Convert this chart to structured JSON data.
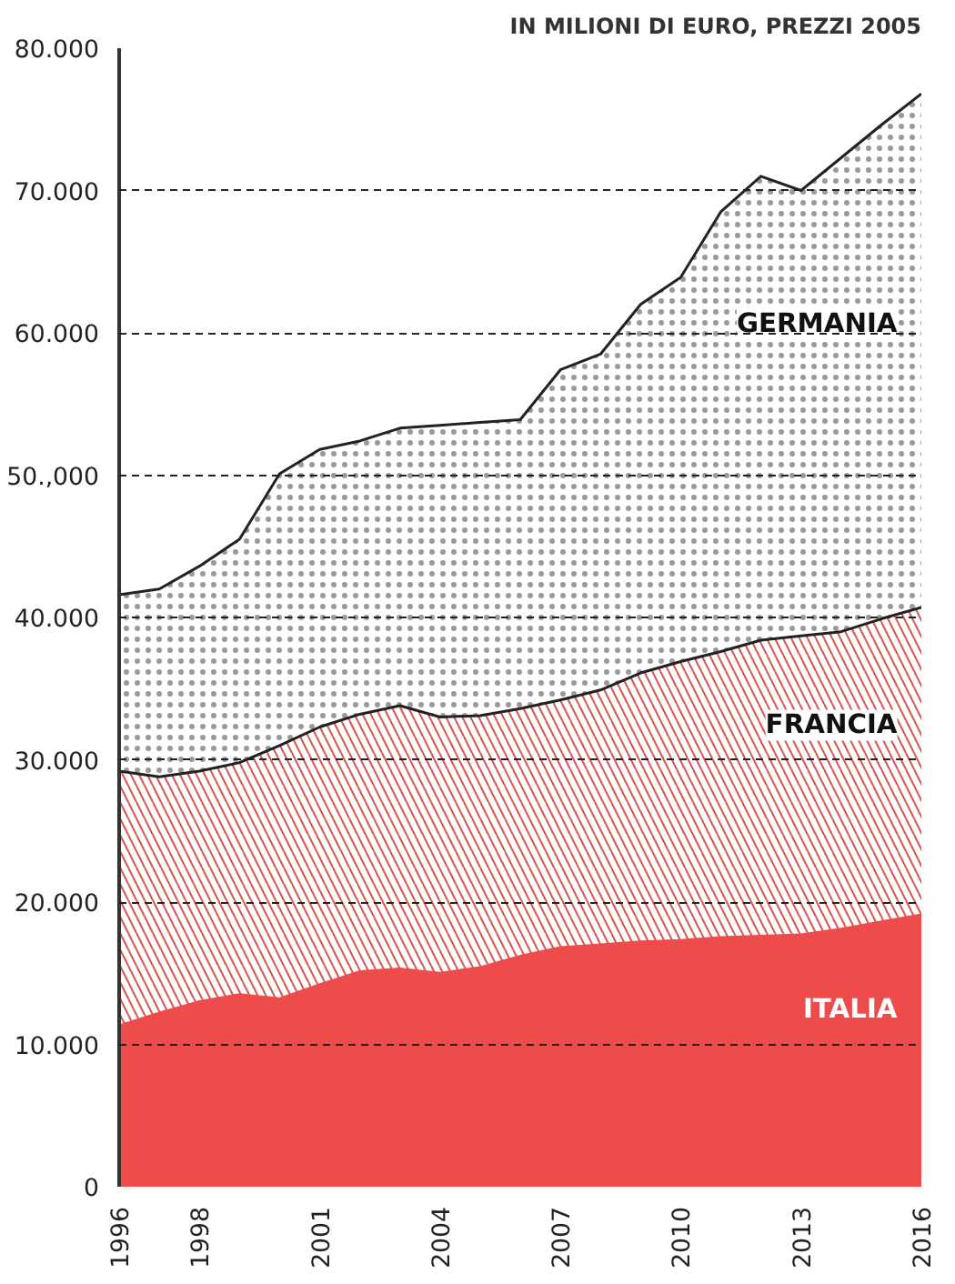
{
  "chart_data": {
    "type": "area",
    "subtitle": "IN MILIONI DI EURO, PREZZI 2005",
    "x": [
      1996,
      1997,
      1998,
      1999,
      2000,
      2001,
      2002,
      2003,
      2004,
      2005,
      2006,
      2007,
      2008,
      2009,
      2010,
      2011,
      2012,
      2013,
      2014,
      2015,
      2016
    ],
    "series": [
      {
        "name": "GERMANIA",
        "color": "#9a9a9a",
        "values": [
          41600,
          42000,
          43600,
          45500,
          50100,
          51800,
          52400,
          53300,
          53500,
          53700,
          53900,
          57400,
          58500,
          62000,
          63900,
          68500,
          71000,
          70000,
          72300,
          74600,
          76800
        ]
      },
      {
        "name": "FRANCIA",
        "color": "#d9534f",
        "values": [
          29200,
          28800,
          29200,
          29800,
          31000,
          32300,
          33200,
          33800,
          33000,
          33100,
          33600,
          34200,
          34900,
          36100,
          36900,
          37600,
          38400,
          38700,
          39000,
          39900,
          40700
        ]
      },
      {
        "name": "ITALIA",
        "color": "#ee4b4b",
        "values": [
          11400,
          12300,
          13100,
          13600,
          13300,
          14300,
          15200,
          15400,
          15100,
          15500,
          16300,
          16900,
          17100,
          17300,
          17400,
          17600,
          17700,
          17800,
          18200,
          18700,
          19200
        ]
      }
    ],
    "xlim": [
      1996,
      2016
    ],
    "xticks": [
      1996,
      1998,
      2001,
      2004,
      2007,
      2010,
      2013,
      2016
    ],
    "ylim": [
      0,
      80000
    ],
    "yticks": [
      {
        "value": 0,
        "label": "0"
      },
      {
        "value": 10000,
        "label": "10.000"
      },
      {
        "value": 20000,
        "label": "20.000"
      },
      {
        "value": 30000,
        "label": "30.000"
      },
      {
        "value": 40000,
        "label": "40.000"
      },
      {
        "value": 50000,
        "label": "50.,000"
      },
      {
        "value": 60000,
        "label": "60.000"
      },
      {
        "value": 70000,
        "label": "70.000"
      },
      {
        "value": 80000,
        "label": "80.000"
      }
    ],
    "grid": "y"
  }
}
